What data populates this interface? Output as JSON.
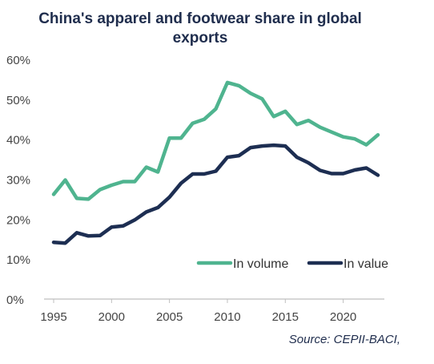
{
  "title": "China's apparel and footwear share in global exports",
  "source": "Source:  CEPII-BACI,",
  "colors": {
    "volume": "#4fb48f",
    "value": "#1d2e52"
  },
  "chart_data": {
    "type": "line",
    "title": "China's apparel and footwear share in global exports",
    "xlabel": "",
    "ylabel": "",
    "xlim": [
      1995,
      2023
    ],
    "ylim": [
      0,
      60
    ],
    "x_ticks": [
      1995,
      2000,
      2005,
      2010,
      2015,
      2020
    ],
    "x_tick_labels": [
      "1995",
      "2000",
      "2005",
      "2010",
      "2015",
      "2020"
    ],
    "y_ticks": [
      0,
      10,
      20,
      30,
      40,
      50,
      60
    ],
    "y_tick_labels": [
      "0%",
      "10%",
      "20%",
      "30%",
      "40%",
      "50%",
      "60%"
    ],
    "grid": false,
    "legend_position": "bottom-right",
    "x": [
      1995,
      1996,
      1997,
      1998,
      1999,
      2000,
      2001,
      2002,
      2003,
      2004,
      2005,
      2006,
      2007,
      2008,
      2009,
      2010,
      2011,
      2012,
      2013,
      2014,
      2015,
      2016,
      2017,
      2018,
      2019,
      2020,
      2021,
      2022,
      2023
    ],
    "series": [
      {
        "name": "In volume",
        "color": "#4fb48f",
        "values": [
          26.2,
          29.8,
          25.2,
          25.0,
          27.4,
          28.5,
          29.4,
          29.4,
          33.0,
          31.8,
          40.3,
          40.3,
          44.0,
          45.0,
          47.6,
          54.2,
          53.4,
          51.5,
          50.1,
          45.7,
          47.0,
          43.7,
          44.7,
          43.0,
          41.8,
          40.6,
          40.1,
          38.6,
          41.1
        ]
      },
      {
        "name": "In value",
        "color": "#1d2e52",
        "values": [
          14.2,
          14.0,
          16.6,
          15.8,
          15.9,
          18.0,
          18.3,
          19.8,
          21.8,
          22.9,
          25.5,
          29.0,
          31.3,
          31.3,
          32.0,
          35.5,
          35.9,
          37.9,
          38.3,
          38.5,
          38.3,
          35.5,
          34.1,
          32.2,
          31.4,
          31.4,
          32.3,
          32.8,
          31.0
        ]
      }
    ]
  }
}
